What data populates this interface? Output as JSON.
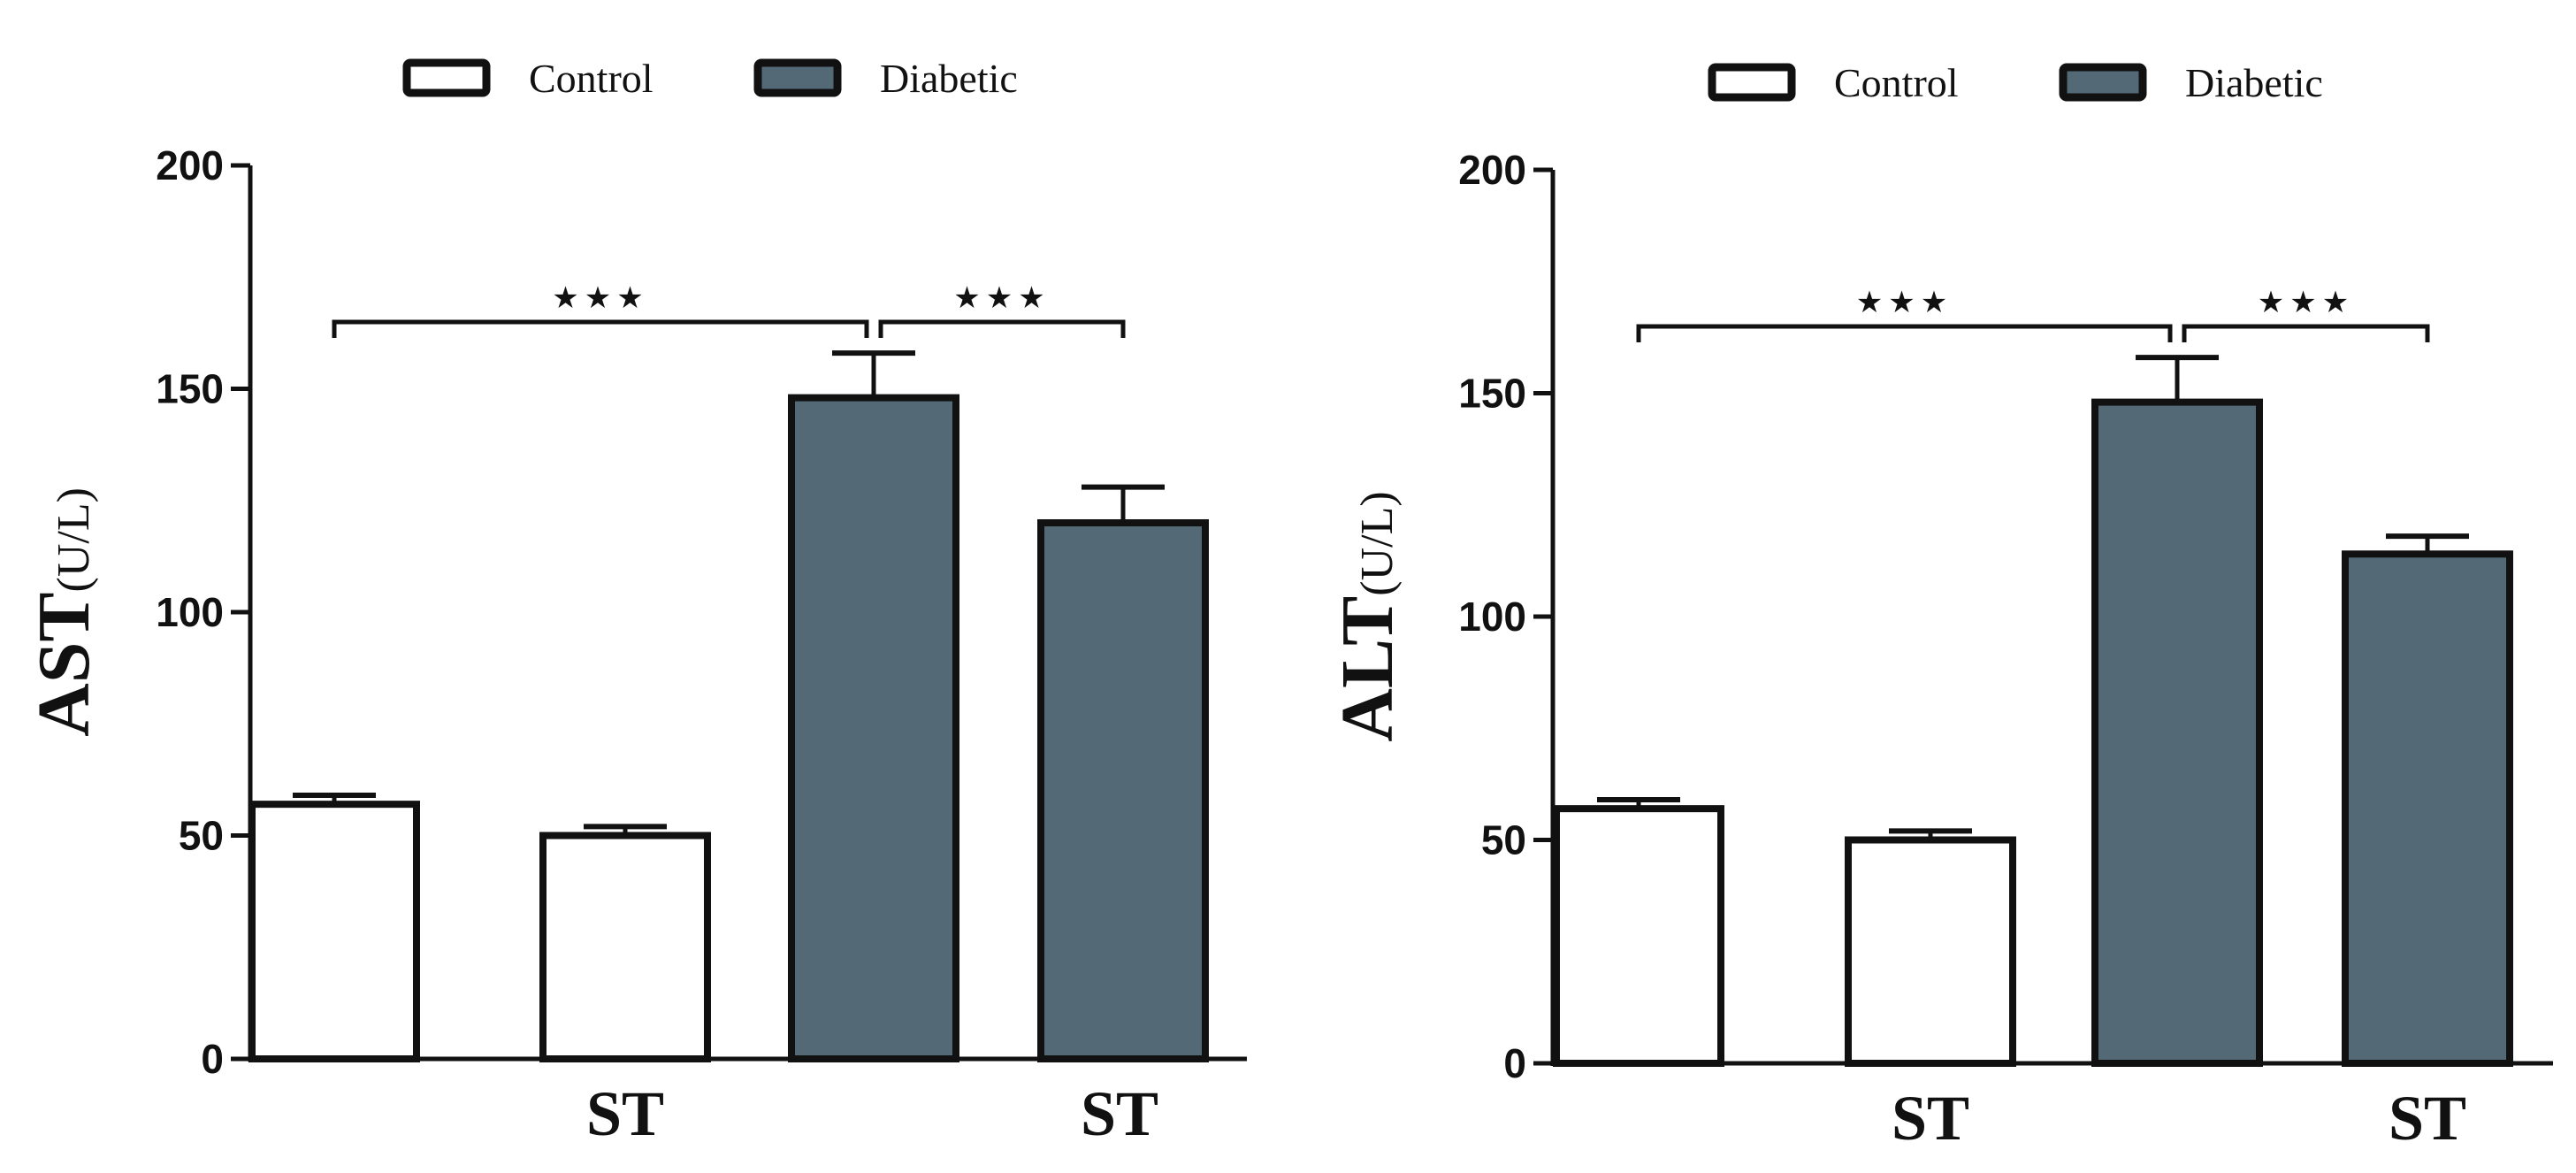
{
  "colors": {
    "control_fill": "#ffffff",
    "diabetic_fill": "#536a76",
    "stroke": "#111111"
  },
  "chart_data": [
    {
      "type": "bar",
      "id": "ast",
      "ylabel": "AST",
      "ylabel_unit": "(U/L)",
      "ylim": [
        0,
        200
      ],
      "yticks": [
        0,
        50,
        100,
        150,
        200
      ],
      "legend": [
        {
          "name": "Control",
          "color": "#ffffff"
        },
        {
          "name": "Diabetic",
          "color": "#536a76"
        }
      ],
      "legend_position": "top",
      "x_labels": [
        "ST",
        "ST"
      ],
      "bars": [
        {
          "group": "Control",
          "value": 57,
          "error": 2
        },
        {
          "group": "Control",
          "value": 50,
          "error": 2
        },
        {
          "group": "Diabetic",
          "value": 148,
          "error": 10
        },
        {
          "group": "Diabetic",
          "value": 120,
          "error": 8
        }
      ],
      "significance": [
        {
          "from": 0,
          "to": 2,
          "label": "★★★"
        },
        {
          "from": 2,
          "to": 3,
          "label": "★★★"
        }
      ]
    },
    {
      "type": "bar",
      "id": "alt",
      "ylabel": "ALT",
      "ylabel_unit": "(U/L)",
      "ylim": [
        0,
        200
      ],
      "yticks": [
        0,
        50,
        100,
        150,
        200
      ],
      "legend": [
        {
          "name": "Control",
          "color": "#ffffff"
        },
        {
          "name": "Diabetic",
          "color": "#536a76"
        }
      ],
      "legend_position": "top",
      "x_labels": [
        "ST",
        "ST"
      ],
      "bars": [
        {
          "group": "Control",
          "value": 57,
          "error": 2
        },
        {
          "group": "Control",
          "value": 50,
          "error": 2
        },
        {
          "group": "Diabetic",
          "value": 148,
          "error": 10
        },
        {
          "group": "Diabetic",
          "value": 114,
          "error": 4
        }
      ],
      "significance": [
        {
          "from": 0,
          "to": 2,
          "label": "★★★"
        },
        {
          "from": 2,
          "to": 3,
          "label": "★★★"
        }
      ]
    }
  ]
}
